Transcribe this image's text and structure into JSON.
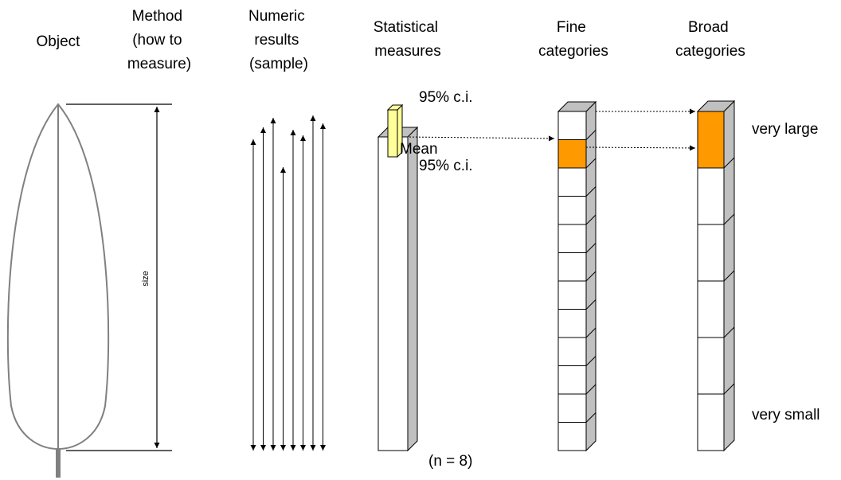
{
  "headers": {
    "object": [
      "Object"
    ],
    "method": [
      "Method",
      "(how to",
      "measure)"
    ],
    "numeric": [
      "Numeric",
      "results",
      "(sample)"
    ],
    "statistical": [
      "Statistical",
      "measures"
    ],
    "fine": [
      "Fine",
      "categories"
    ],
    "broad": [
      "Broad",
      "categories"
    ]
  },
  "labels": {
    "size": "size",
    "ci_upper": "95% c.i.",
    "mean": "Mean",
    "ci_lower": "95% c.i.",
    "sample_size": "(n = 8)",
    "very_large": "very large",
    "very_small": "very small"
  },
  "sample": {
    "n": 8
  },
  "fine_categories": {
    "count": 12,
    "highlighted_index": 1
  },
  "broad_categories": {
    "count": 6,
    "highlighted_index": 0
  },
  "colors": {
    "highlight": "#ff9900",
    "ci_box": "#ffff99",
    "side_face": "#c0c0c0",
    "leaf_outline": "#808080",
    "petiole": "#808080"
  }
}
